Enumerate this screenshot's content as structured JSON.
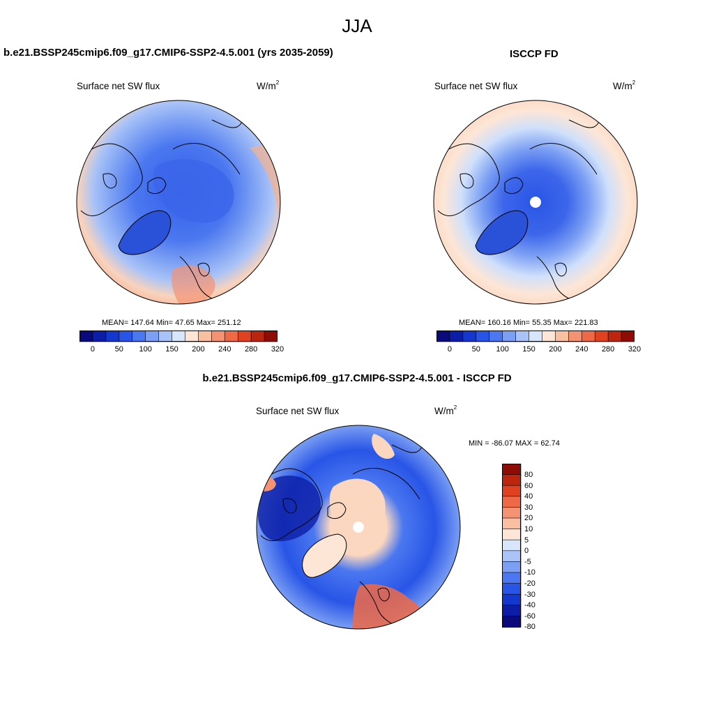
{
  "title": "JJA",
  "colors": {
    "land_coast": "#000000",
    "seq_palette": [
      "#0a0a7d",
      "#0c1ea5",
      "#1437cd",
      "#2855e6",
      "#4b78f0",
      "#7b9ff3",
      "#a9c3f7",
      "#d7e6fb",
      "#fde6d6",
      "#f8bfa0",
      "#f39373",
      "#ee6a46",
      "#e0411e",
      "#bc250e",
      "#8d0d05"
    ],
    "diff_palette": [
      "#0a0a7d",
      "#0c1ea5",
      "#1437cd",
      "#2855e6",
      "#4b78f0",
      "#7b9ff3",
      "#a9c3f7",
      "#d7e6fb",
      "#fde6d6",
      "#f8bfa0",
      "#f39373",
      "#ee6a46",
      "#e0411e",
      "#bc250e",
      "#8d0d05"
    ]
  },
  "panels": {
    "model": {
      "title": "b.e21.BSSP245cmip6.f09_g17.CMIP6-SSP2-4.5.001 (yrs 2035-2059)",
      "variable": "Surface net SW flux",
      "units_base": "W/m",
      "units_exp": "2",
      "stats": "MEAN= 147.64  Min=  47.65  Max= 251.12",
      "colorbar_labels": [
        "0",
        "50",
        "100",
        "150",
        "200",
        "240",
        "280",
        "320"
      ]
    },
    "obs": {
      "title": "ISCCP FD",
      "variable": "Surface net SW flux",
      "units_base": "W/m",
      "units_exp": "2",
      "stats": "MEAN= 160.16  Min=  55.35  Max= 221.83",
      "colorbar_labels": [
        "0",
        "50",
        "100",
        "150",
        "200",
        "240",
        "280",
        "320"
      ]
    },
    "diff": {
      "title": "b.e21.BSSP245cmip6.f09_g17.CMIP6-SSP2-4.5.001 - ISCCP FD",
      "variable": "Surface net SW flux",
      "units_base": "W/m",
      "units_exp": "2",
      "stats": "MIN = -86.07 MAX =  62.74",
      "colorbar_labels": [
        "80",
        "60",
        "40",
        "30",
        "20",
        "10",
        "5",
        "0",
        "-5",
        "-10",
        "-20",
        "-30",
        "-40",
        "-60",
        "-80"
      ]
    }
  }
}
